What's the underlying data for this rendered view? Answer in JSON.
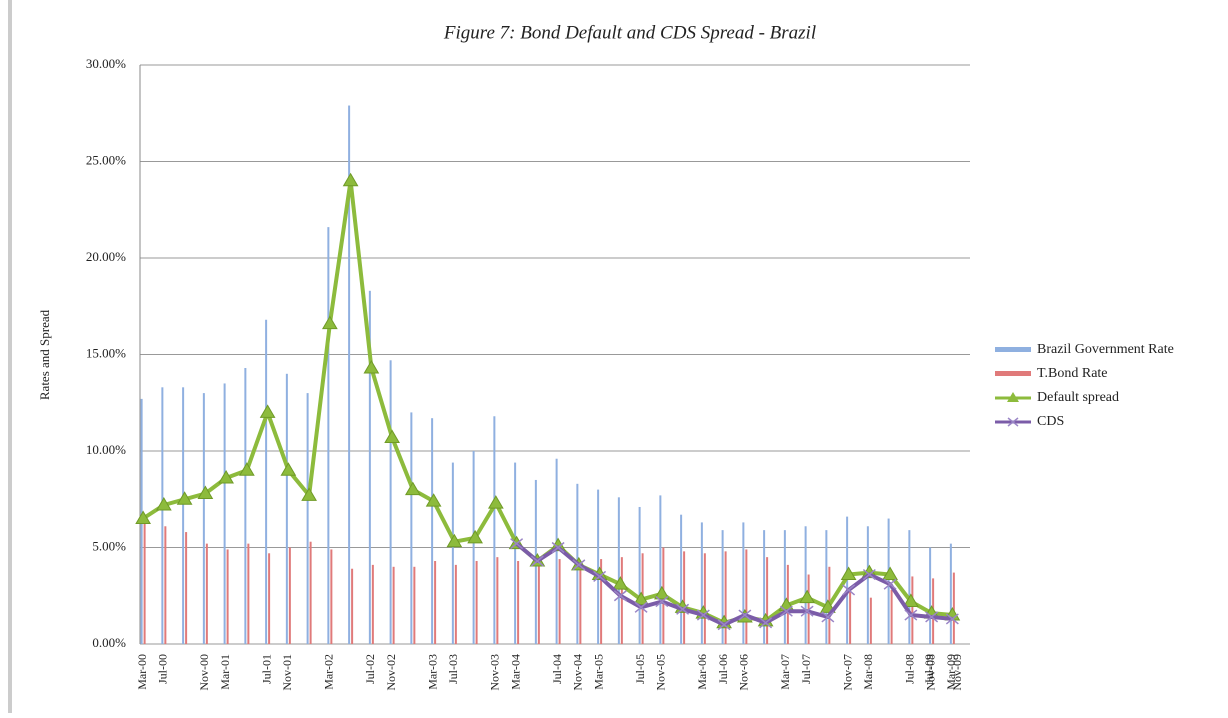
{
  "chart_data": {
    "type": "bar-line",
    "title": "Figure 7: Bond Default and CDS  Spread - Brazil",
    "ylabel": "Rates and Spread",
    "categories": [
      "Mar-00",
      "Jul-00",
      null,
      "Nov-00",
      "Mar-01",
      null,
      "Jul-01",
      "Nov-01",
      null,
      "Mar-02",
      null,
      "Jul-02",
      "Nov-02",
      null,
      "Mar-03",
      "Jul-03",
      null,
      "Nov-03",
      "Mar-04",
      null,
      "Jul-04",
      "Nov-04",
      "Mar-05",
      null,
      "Jul-05",
      "Nov-05",
      null,
      "Mar-06",
      "Jul-06",
      "Nov-06",
      null,
      "Mar-07",
      "Jul-07",
      null,
      "Nov-07",
      "Mar-08",
      null,
      "Jul-08",
      "Nov-08",
      "Mar-09"
    ],
    "extra_labels": [
      "Jul-09",
      "Nov-09"
    ],
    "series": [
      {
        "name": "Brazil Government Rate",
        "kind": "bar",
        "color": "#8fb0e0",
        "values": [
          12.7,
          13.3,
          13.3,
          13.0,
          13.5,
          14.3,
          16.8,
          14.0,
          13.0,
          21.6,
          27.9,
          18.3,
          14.7,
          12.0,
          11.7,
          9.4,
          10.0,
          11.8,
          9.4,
          8.5,
          9.6,
          8.3,
          8.0,
          7.6,
          7.1,
          7.7,
          6.7,
          6.3,
          5.9,
          6.3,
          5.9,
          5.9,
          6.1,
          5.9,
          6.6,
          6.1,
          6.5,
          5.9,
          5.0,
          5.2
        ]
      },
      {
        "name": "T.Bond Rate",
        "kind": "bar",
        "color": "#e07a7a",
        "values": [
          6.3,
          6.1,
          5.8,
          5.2,
          4.9,
          5.2,
          4.7,
          5.0,
          5.3,
          4.9,
          3.9,
          4.1,
          4.0,
          4.0,
          4.3,
          4.1,
          4.3,
          4.5,
          4.3,
          4.2,
          4.4,
          4.3,
          4.4,
          4.5,
          4.7,
          5.0,
          4.8,
          4.7,
          4.8,
          4.9,
          4.5,
          4.1,
          3.6,
          4.0,
          2.8,
          2.4,
          2.8,
          3.5,
          3.4,
          3.7
        ]
      },
      {
        "name": "Default spread",
        "kind": "line",
        "marker": "triangle",
        "color": "#8dbb3c",
        "values": [
          6.5,
          7.2,
          7.5,
          7.8,
          8.6,
          9.0,
          12.0,
          9.0,
          7.7,
          16.6,
          24.0,
          14.3,
          10.7,
          8.0,
          7.4,
          5.3,
          5.5,
          7.3,
          5.2,
          4.3,
          5.1,
          4.1,
          3.6,
          3.1,
          2.3,
          2.6,
          1.9,
          1.6,
          1.1,
          1.4,
          1.2,
          2.0,
          2.4,
          1.9,
          3.6,
          3.7,
          3.6,
          2.2,
          1.6,
          1.5
        ]
      },
      {
        "name": "CDS",
        "kind": "line",
        "marker": "x",
        "color": "#7b5ca8",
        "values": [
          null,
          null,
          null,
          null,
          null,
          null,
          null,
          null,
          null,
          null,
          null,
          null,
          null,
          null,
          null,
          null,
          null,
          null,
          5.2,
          4.3,
          5.0,
          4.1,
          3.5,
          2.5,
          1.9,
          2.2,
          1.8,
          1.5,
          1.0,
          1.5,
          1.1,
          1.7,
          1.7,
          1.4,
          2.8,
          3.6,
          3.1,
          1.5,
          1.4,
          1.3
        ]
      }
    ],
    "ylim": [
      0,
      30
    ],
    "yticks": [
      {
        "value": 0,
        "label": "0.00%"
      },
      {
        "value": 5,
        "label": "5.00%"
      },
      {
        "value": 10,
        "label": "10.00%"
      },
      {
        "value": 15,
        "label": "15.00%"
      },
      {
        "value": 20,
        "label": "20.00%"
      },
      {
        "value": 25,
        "label": "25.00%"
      },
      {
        "value": 30,
        "label": "30.00%"
      }
    ],
    "grid": true,
    "legend": "right"
  }
}
